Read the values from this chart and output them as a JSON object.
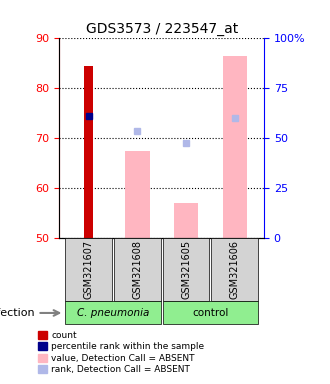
{
  "title": "GDS3573 / 223547_at",
  "samples": [
    "GSM321607",
    "GSM321608",
    "GSM321605",
    "GSM321606"
  ],
  "ylim_left": [
    50,
    90
  ],
  "ylim_right": [
    0,
    100
  ],
  "yticks_left": [
    50,
    60,
    70,
    80,
    90
  ],
  "yticks_right": [
    0,
    25,
    50,
    75,
    100
  ],
  "ytick_labels_right": [
    "0",
    "25",
    "50",
    "75",
    "100%"
  ],
  "count_bars": {
    "GSM321607": 84.5,
    "GSM321608": null,
    "GSM321605": null,
    "GSM321606": null
  },
  "percentile_rank_dots": {
    "GSM321607": 74.5,
    "GSM321608": null,
    "GSM321605": null,
    "GSM321606": 74.0
  },
  "value_absent_bars": {
    "GSM321607": null,
    "GSM321608": 67.5,
    "GSM321605": 57.0,
    "GSM321606": 86.5
  },
  "rank_absent_dots": {
    "GSM321607": null,
    "GSM321608": 71.5,
    "GSM321605": 69.0,
    "GSM321606": 74.0
  },
  "bar_width": 0.5,
  "count_color": "#cc0000",
  "percentile_dot_color": "#00008b",
  "value_absent_color": "#ffb6c1",
  "rank_absent_color": "#b0b8e8",
  "group_label_pneumonia": "C. pneumonia",
  "group_label_control": "control",
  "group_bg_color": "#90ee90",
  "sample_bg_color": "#d3d3d3",
  "infection_label": "infection",
  "legend_labels": [
    "count",
    "percentile rank within the sample",
    "value, Detection Call = ABSENT",
    "rank, Detection Call = ABSENT"
  ],
  "legend_colors": [
    "#cc0000",
    "#00008b",
    "#ffb6c1",
    "#b0b8e8"
  ]
}
